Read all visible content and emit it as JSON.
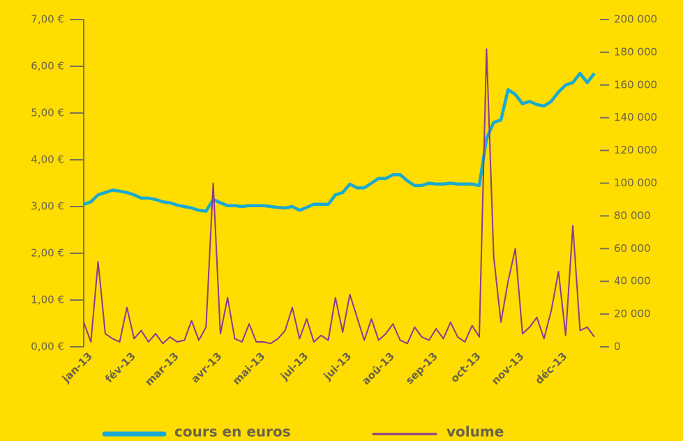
{
  "chart_data": {
    "type": "line",
    "categories": [
      "jan-13",
      null,
      null,
      null,
      null,
      null,
      "fév-13",
      null,
      null,
      null,
      null,
      null,
      "mar-13",
      null,
      null,
      null,
      null,
      null,
      "avr-13",
      null,
      null,
      null,
      null,
      null,
      "mai-13",
      null,
      null,
      null,
      null,
      null,
      "jui-13",
      null,
      null,
      null,
      null,
      null,
      "jui-13",
      null,
      null,
      null,
      null,
      null,
      "aoû-13",
      null,
      null,
      null,
      null,
      null,
      "sep-13",
      null,
      null,
      null,
      null,
      null,
      "oct-13",
      null,
      null,
      null,
      null,
      null,
      "nov-13",
      null,
      null,
      null,
      null,
      null,
      "déc-13",
      null,
      null,
      null,
      null,
      null
    ],
    "series": [
      {
        "name": "cours en euros",
        "color": "#1ba9d0",
        "axis": "y",
        "values": [
          3.05,
          3.1,
          3.25,
          3.3,
          3.35,
          3.33,
          3.3,
          3.25,
          3.18,
          3.18,
          3.15,
          3.1,
          3.08,
          3.03,
          3.0,
          2.97,
          2.92,
          2.9,
          3.15,
          3.08,
          3.02,
          3.02,
          3.0,
          3.02,
          3.02,
          3.02,
          3.0,
          2.98,
          2.97,
          3.0,
          2.92,
          2.98,
          3.05,
          3.05,
          3.05,
          3.25,
          3.3,
          3.48,
          3.4,
          3.4,
          3.5,
          3.6,
          3.6,
          3.68,
          3.68,
          3.55,
          3.45,
          3.45,
          3.5,
          3.48,
          3.48,
          3.5,
          3.48,
          3.48,
          3.48,
          3.45,
          4.45,
          4.8,
          4.85,
          5.5,
          5.4,
          5.2,
          5.25,
          5.18,
          5.15,
          5.25,
          5.45,
          5.6,
          5.65,
          5.85,
          5.65,
          5.85
        ]
      },
      {
        "name": "volume",
        "color": "#8b3a8f",
        "axis": "y2",
        "values": [
          15000,
          3000,
          52000,
          8000,
          5000,
          3000,
          24000,
          5000,
          10000,
          3000,
          8000,
          2000,
          6000,
          3000,
          4000,
          16000,
          4000,
          12000,
          100000,
          8000,
          30000,
          5000,
          3000,
          14000,
          3000,
          3000,
          2000,
          5000,
          10000,
          24000,
          5000,
          17000,
          3000,
          7000,
          4000,
          30000,
          9000,
          32000,
          18000,
          4000,
          17000,
          4000,
          8000,
          14000,
          4000,
          2000,
          12000,
          6000,
          4000,
          11000,
          5000,
          15000,
          6000,
          3000,
          13000,
          6000,
          182000,
          55000,
          15000,
          40000,
          60000,
          8000,
          12000,
          18000,
          5000,
          22000,
          46000,
          7000,
          74000,
          10000,
          12000,
          6000
        ]
      }
    ],
    "ylim": [
      0,
      7
    ],
    "yticks": [
      {
        "value": 0,
        "label": "0,00 €"
      },
      {
        "value": 1,
        "label": "1,00 €"
      },
      {
        "value": 2,
        "label": "2,00 €"
      },
      {
        "value": 3,
        "label": "3,00 €"
      },
      {
        "value": 4,
        "label": "4,00 €"
      },
      {
        "value": 5,
        "label": "5,00 €"
      },
      {
        "value": 6,
        "label": "6,00 €"
      },
      {
        "value": 7,
        "label": "7,00 €"
      }
    ],
    "y2lim": [
      0,
      200000
    ],
    "y2ticks": [
      0,
      {
        "value": 20000,
        "label": "20 000"
      },
      {
        "value": 40000,
        "label": "40 000"
      },
      {
        "value": 60000,
        "label": "60 000"
      },
      {
        "value": 80000,
        "label": "80 000"
      },
      {
        "value": 100000,
        "label": "100 000"
      },
      {
        "value": 120000,
        "label": "120 000"
      },
      {
        "value": 140000,
        "label": "140 000"
      },
      {
        "value": 160000,
        "label": "160 000"
      },
      {
        "value": 180000,
        "label": "180 000"
      },
      {
        "value": 200000,
        "label": "200 000"
      }
    ],
    "legend": "bottom"
  }
}
